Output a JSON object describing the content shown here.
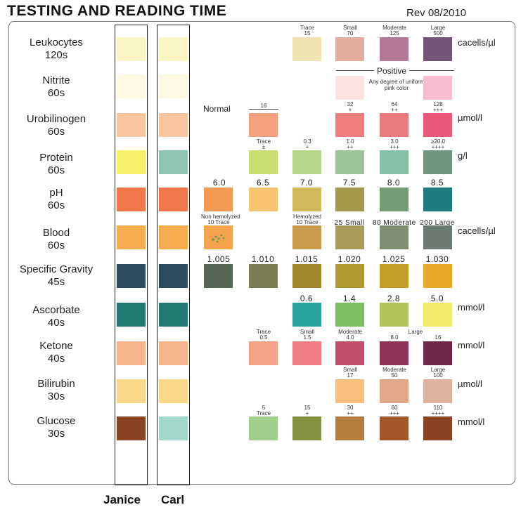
{
  "header": {
    "title": "TESTING AND READING TIME",
    "revision": "Rev 08/2010"
  },
  "people": {
    "left": "Janice",
    "right": "Carl"
  },
  "colors": {
    "strip_janice": [
      "#fbf5c6",
      "#fdf8e3",
      "#f9c59f",
      "#f9f06a",
      "#f2784c",
      "#f5ac4e",
      "#2e4a5f",
      "#217a72",
      "#f6b48d",
      "#fad889",
      "#8a4423"
    ],
    "strip_carl": [
      "#fbf5c6",
      "#fdf8e3",
      "#f9c59f",
      "#8ec6b2",
      "#f2784c",
      "#f5ac4e",
      "#2e4a5f",
      "#217a72",
      "#f6b48d",
      "#fad889",
      "#a3d7cc"
    ]
  },
  "tests": [
    {
      "name": "Leukocytes",
      "time": "120s"
    },
    {
      "name": "Nitrite",
      "time": "60s"
    },
    {
      "name": "Urobilinogen",
      "time": "60s"
    },
    {
      "name": "Protein",
      "time": "60s"
    },
    {
      "name": "pH",
      "time": "60s"
    },
    {
      "name": "Blood",
      "time": "60s"
    },
    {
      "name": "Specific Gravity",
      "time": "45s"
    },
    {
      "name": "Ascorbate",
      "time": "40s"
    },
    {
      "name": "Ketone",
      "time": "40s"
    },
    {
      "name": "Bilirubin",
      "time": "30s"
    },
    {
      "name": "Glucose",
      "time": "30s"
    }
  ],
  "chart": {
    "normal_label": "Normal",
    "positive_label": "Positive",
    "nitrite_note": "Any degree of uniform pink color",
    "leuko": {
      "l1": "Trace",
      "v1": "15",
      "l2": "Small",
      "v2": "70",
      "l3": "Moderate",
      "v3": "125",
      "l4": "Large",
      "v4": "500",
      "unit": "cacells/µl"
    },
    "uro": {
      "v0": "16",
      "v1": "32",
      "s1": "+",
      "v2": "64",
      "s2": "++",
      "v3": "128",
      "s3": "+++",
      "unit": "µmol/l"
    },
    "protein": {
      "l0": "Trace",
      "s0": "±",
      "v1": "0.3",
      "s1": "+",
      "v2": "1.0",
      "s2": "++",
      "v3": "3.0",
      "s3": "+++",
      "v4": "≥20.0",
      "s4": "++++",
      "unit": "g/l"
    },
    "ph": [
      "6.0",
      "6.5",
      "7.0",
      "7.5",
      "8.0",
      "8.5"
    ],
    "blood": {
      "nh": "Non hemolyzed",
      "nh_val": "10 Trace",
      "h": "Hemolyzed",
      "h_val": "10 Trace",
      "l3": "25 Small",
      "l4": "80 Moderate",
      "l5": "200 Large",
      "unit": "cacells/µl"
    },
    "sg": [
      "1.005",
      "1.010",
      "1.015",
      "1.020",
      "1.025",
      "1.030"
    ],
    "asc": {
      "v1": "0.6",
      "v2": "1.4",
      "v3": "2.8",
      "v4": "5.0",
      "unit": "mmol/l"
    },
    "ket": {
      "l0": "Trace",
      "v0": "0.5",
      "l1": "Small",
      "v1": "1.5",
      "l2": "Moderate",
      "v2": "4.0",
      "v3": "8.0",
      "l4": "Large",
      "v4": "16",
      "unit": "mmol/l"
    },
    "bili": {
      "l1": "Small",
      "v1": "17",
      "l2": "Moderate",
      "v2": "50",
      "l3": "Large",
      "v3": "100",
      "unit": "µmol/l"
    },
    "glu": {
      "v0": "5",
      "l0": "Trace",
      "v1": "15",
      "s1": "+",
      "v2": "30",
      "s2": "++",
      "v3": "60",
      "s3": "+++",
      "v4": "110",
      "s4": "++++",
      "unit": "mmol/l"
    }
  }
}
